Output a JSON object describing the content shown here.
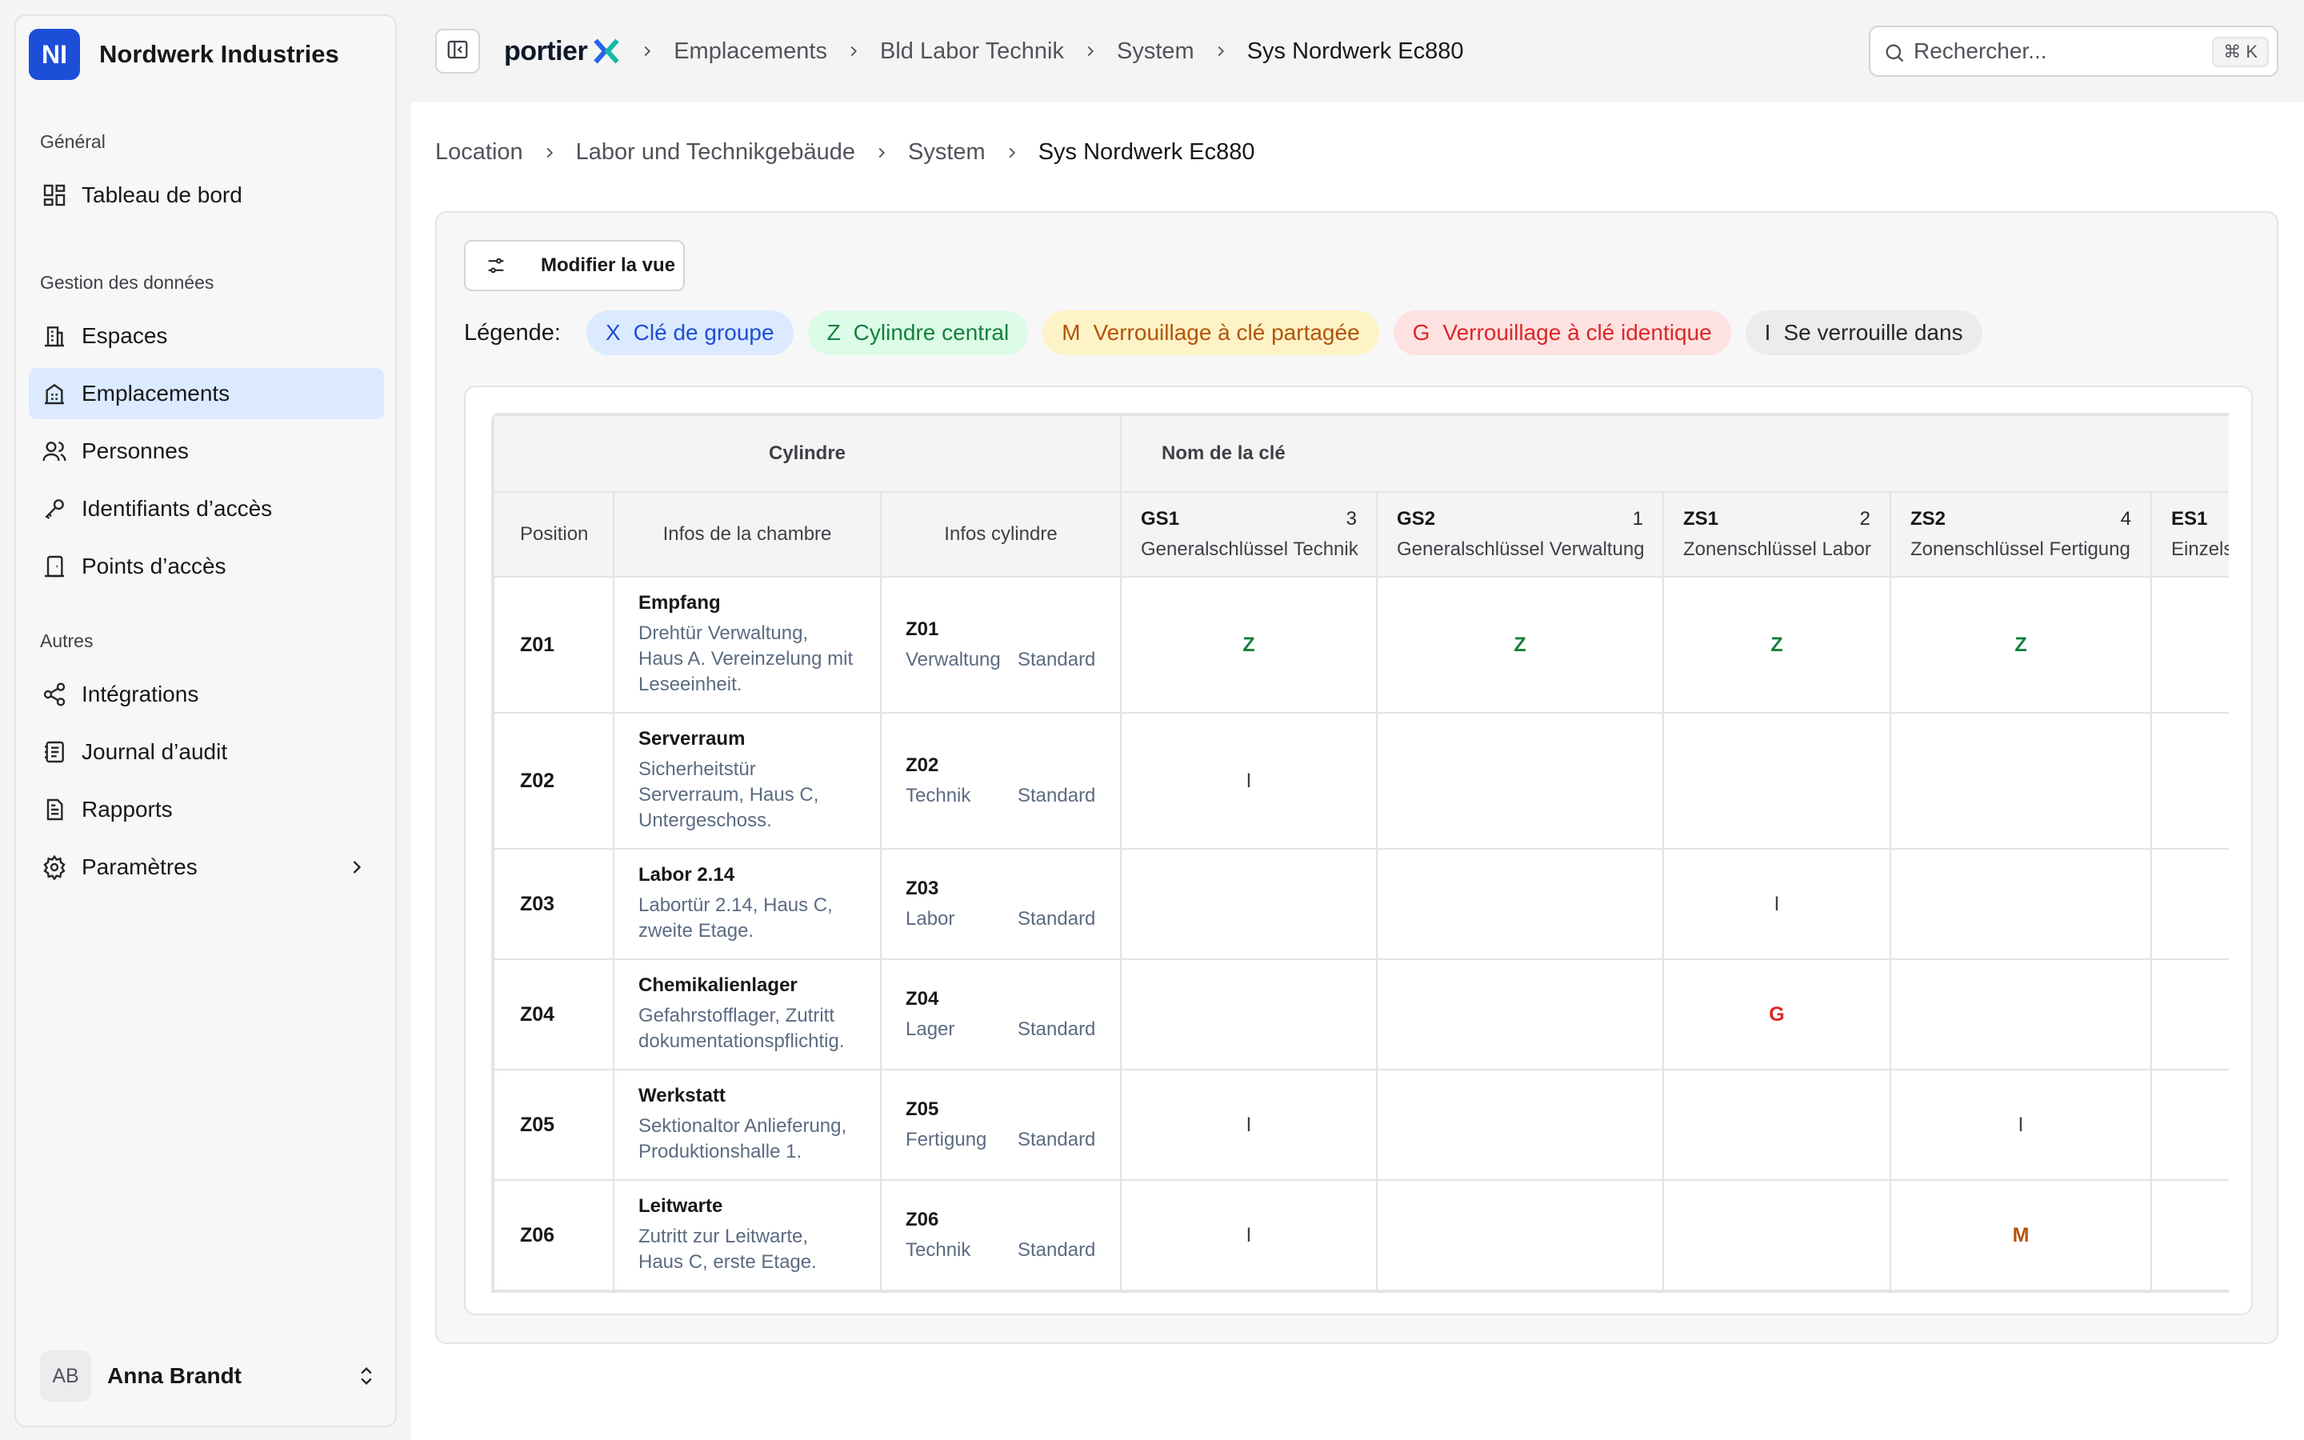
{
  "org": {
    "initials": "NI",
    "name": "Nordwerk Industries"
  },
  "sidebar": {
    "groups": [
      {
        "label": "Général"
      },
      {
        "label": "Gestion des données"
      },
      {
        "label": "Autres"
      }
    ],
    "items": [
      {
        "label": "Tableau de bord",
        "icon": "dashboard-icon"
      },
      {
        "label": "Espaces",
        "icon": "building-icon"
      },
      {
        "label": "Emplacements",
        "icon": "location-building-icon",
        "active": true
      },
      {
        "label": "Personnes",
        "icon": "users-icon"
      },
      {
        "label": "Identifiants d’accès",
        "icon": "key-icon"
      },
      {
        "label": "Points d’accès",
        "icon": "access-point-icon"
      },
      {
        "label": "Intégrations",
        "icon": "share-icon"
      },
      {
        "label": "Journal d’audit",
        "icon": "audit-log-icon"
      },
      {
        "label": "Rapports",
        "icon": "report-icon"
      },
      {
        "label": "Paramètres",
        "icon": "gear-icon"
      }
    ]
  },
  "user": {
    "initials": "AB",
    "name": "Anna Brandt"
  },
  "topbar": {
    "brand": "portier",
    "crumbs": [
      "Emplacements",
      "Bld Labor Technik",
      "System",
      "Sys Nordwerk Ec880"
    ],
    "search_placeholder": "Rechercher...",
    "search_shortcut": "⌘ K"
  },
  "breadcrumb": [
    "Location",
    "Labor und Technikgebäude",
    "System",
    "Sys Nordwerk Ec880"
  ],
  "view_button": "Modifier la vue",
  "legend": {
    "label": "Légende:",
    "items": [
      {
        "code": "X",
        "label": "Clé de groupe",
        "color": "#1d4ed8"
      },
      {
        "code": "Z",
        "label": "Cylindre central",
        "color": "#15803d"
      },
      {
        "code": "M",
        "label": "Verrouillage à clé partagée",
        "color": "#b45309"
      },
      {
        "code": "G",
        "label": "Verrouillage à clé identique",
        "color": "#dc2626"
      },
      {
        "code": "I",
        "label": "Se verrouille dans",
        "color": "#27272a"
      }
    ]
  },
  "table": {
    "group_cylinder": "Cylindre",
    "group_key": "Nom de la clé",
    "col_position": "Position",
    "col_room": "Infos de la chambre",
    "col_cylinder": "Infos cylindre",
    "keys": [
      {
        "code": "GS1",
        "count": "3",
        "name": "Generalschlüssel Technik"
      },
      {
        "code": "GS2",
        "count": "1",
        "name": "Generalschlüssel Verwaltung"
      },
      {
        "code": "ZS1",
        "count": "2",
        "name": "Zonenschlüssel Labor"
      },
      {
        "code": "ZS2",
        "count": "4",
        "name": "Zonenschlüssel Fertigung"
      },
      {
        "code": "ES1",
        "count": "",
        "name": "Einzelschlüssel"
      }
    ],
    "rows": [
      {
        "pos": "Z01",
        "room": "Empfang",
        "desc": "Drehtür Verwaltung, Haus A. Vereinzelung mit Leseeinheit.",
        "cyl": "Z01",
        "area": "Verwaltung",
        "type": "Standard",
        "marks": [
          "Z",
          "Z",
          "Z",
          "Z",
          ""
        ]
      },
      {
        "pos": "Z02",
        "room": "Serverraum",
        "desc": "Sicherheitstür Serverraum, Haus C, Untergeschoss.",
        "cyl": "Z02",
        "area": "Technik",
        "type": "Standard",
        "marks": [
          "I",
          "",
          "",
          "",
          ""
        ]
      },
      {
        "pos": "Z03",
        "room": "Labor 2.14",
        "desc": "Labortür 2.14, Haus C, zweite Etage.",
        "cyl": "Z03",
        "area": "Labor",
        "type": "Standard",
        "marks": [
          "",
          "",
          "I",
          "",
          ""
        ]
      },
      {
        "pos": "Z04",
        "room": "Chemikalienlager",
        "desc": "Gefahrstofflager, Zutritt dokumentationspflichtig.",
        "cyl": "Z04",
        "area": "Lager",
        "type": "Standard",
        "marks": [
          "",
          "",
          "G",
          "",
          ""
        ]
      },
      {
        "pos": "Z05",
        "room": "Werkstatt",
        "desc": "Sektionaltor Anlieferung, Produktionshalle 1.",
        "cyl": "Z05",
        "area": "Fertigung",
        "type": "Standard",
        "marks": [
          "I",
          "",
          "",
          "I",
          ""
        ]
      },
      {
        "pos": "Z06",
        "room": "Leitwarte",
        "desc": "Zutritt zur Leitwarte, Haus C, erste Etage.",
        "cyl": "Z06",
        "area": "Technik",
        "type": "Standard",
        "marks": [
          "I",
          "",
          "",
          "M",
          ""
        ]
      }
    ]
  }
}
